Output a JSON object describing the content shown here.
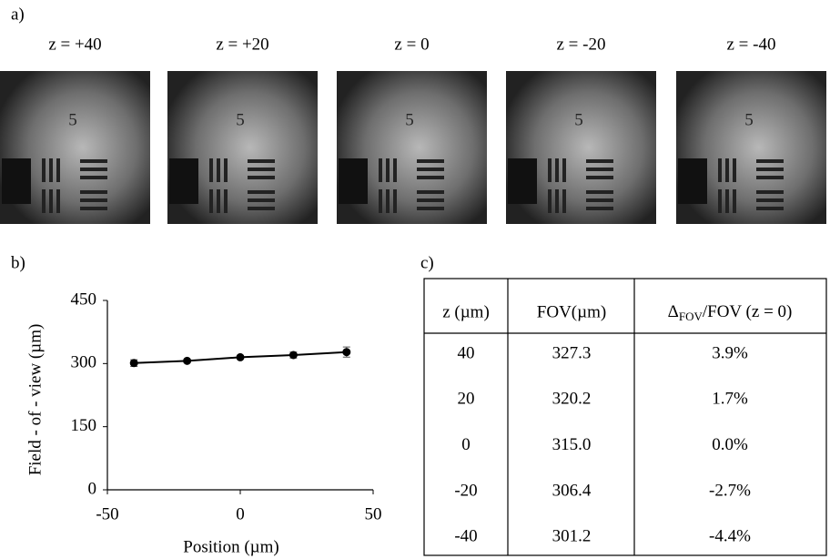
{
  "panel_a": {
    "label": "a)",
    "images": [
      {
        "title": "z = +40"
      },
      {
        "title": "z = +20"
      },
      {
        "title": "z = 0"
      },
      {
        "title": "z = -20"
      },
      {
        "title": "z = -40"
      }
    ]
  },
  "panel_b": {
    "label": "b)"
  },
  "chart_data": {
    "type": "line",
    "x": [
      -40,
      -20,
      0,
      20,
      40
    ],
    "values": [
      301.2,
      306.4,
      315.0,
      320.2,
      327.3
    ],
    "errors": [
      8,
      4,
      4,
      7,
      12
    ],
    "color": "#000000",
    "xlim": [
      -50,
      50
    ],
    "xticks": [
      -50,
      0,
      50
    ],
    "ylim": [
      0,
      450
    ],
    "yticks": [
      0,
      150,
      300,
      450
    ],
    "x_label": "Position (µm)",
    "y_label": "Field - of - view (µm)"
  },
  "panel_c": {
    "label": "c)",
    "table": {
      "header": [
        "z (µm)",
        "FOV(µm)",
        {
          "prefix": "Δ",
          "sub": "FOV",
          "suffix": "/FOV (z = 0)"
        }
      ],
      "rows": [
        [
          "40",
          "327.3",
          "3.9%"
        ],
        [
          "20",
          "320.2",
          "1.7%"
        ],
        [
          "0",
          "315.0",
          "0.0%"
        ],
        [
          "-20",
          "306.4",
          "-2.7%"
        ],
        [
          "-40",
          "301.2",
          "-4.4%"
        ]
      ]
    }
  }
}
